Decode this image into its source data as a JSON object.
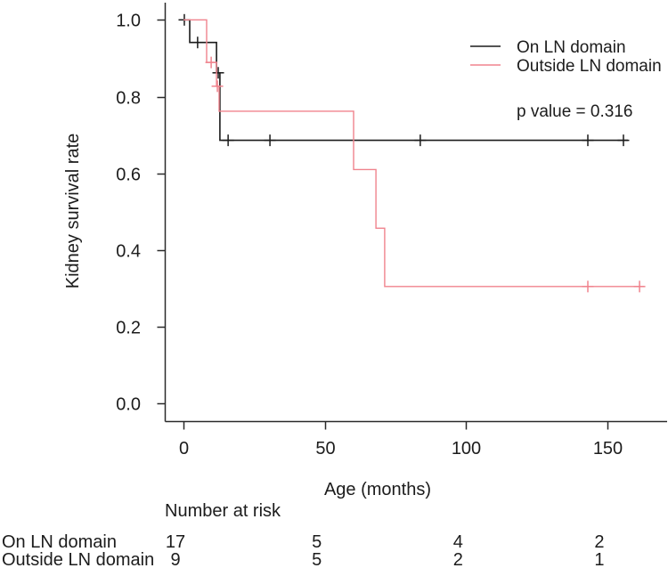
{
  "chart_data": {
    "type": "line",
    "subtype": "kaplan-meier-step",
    "xlabel": "Age (months)",
    "ylabel": "Kidney survival rate",
    "xlim": [
      0,
      170
    ],
    "ylim": [
      0.0,
      1.0
    ],
    "grid": false,
    "legend_position": "top-right",
    "p_value_label": "p value = 0.316",
    "xticks": [
      {
        "t": 0,
        "label": "0"
      },
      {
        "t": 50,
        "label": "50"
      },
      {
        "t": 100,
        "label": "100"
      },
      {
        "t": 150,
        "label": "150"
      }
    ],
    "yticks": [
      {
        "s": 0.0,
        "label": "0.0"
      },
      {
        "s": 0.2,
        "label": "0.2"
      },
      {
        "s": 0.4,
        "label": "0.4"
      },
      {
        "s": 0.6,
        "label": "0.6"
      },
      {
        "s": 0.8,
        "label": "0.8"
      },
      {
        "s": 1.0,
        "label": "1.0"
      }
    ],
    "series": [
      {
        "name": "On LN domain",
        "color": "#1b1b1b",
        "steps": [
          [
            0,
            1.0
          ],
          [
            2.2,
            1.0
          ],
          [
            2.2,
            0.941
          ],
          [
            11.7,
            0.941
          ],
          [
            11.7,
            0.862
          ],
          [
            12.9,
            0.862
          ],
          [
            12.9,
            0.686
          ],
          [
            157.3,
            0.686
          ]
        ],
        "censors": [
          [
            0.3,
            1.0
          ],
          [
            5.0,
            0.941
          ],
          [
            12.3,
            0.862
          ],
          [
            15.8,
            0.686
          ],
          [
            30.6,
            0.686
          ],
          [
            83.8,
            0.686
          ],
          [
            143.1,
            0.686
          ],
          [
            155.7,
            0.686
          ]
        ]
      },
      {
        "name": "Outside LN domain",
        "color": "#f0838d",
        "steps": [
          [
            0,
            1.0
          ],
          [
            8.2,
            1.0
          ],
          [
            8.2,
            0.889
          ],
          [
            11.7,
            0.889
          ],
          [
            11.7,
            0.827
          ],
          [
            12.6,
            0.827
          ],
          [
            12.6,
            0.762
          ],
          [
            60.2,
            0.762
          ],
          [
            60.2,
            0.61
          ],
          [
            68.1,
            0.61
          ],
          [
            68.1,
            0.457
          ],
          [
            71.2,
            0.457
          ],
          [
            71.2,
            0.305
          ],
          [
            163.0,
            0.305
          ]
        ],
        "censors": [
          [
            9.8,
            0.889
          ],
          [
            12.0,
            0.827
          ],
          [
            143.1,
            0.305
          ],
          [
            161.4,
            0.305
          ]
        ]
      }
    ],
    "number_at_risk": {
      "title": "Number at risk",
      "time_points": [
        0,
        50,
        100,
        150
      ],
      "rows": [
        {
          "label": "On LN domain",
          "values": [
            "17",
            "5",
            "4",
            "2"
          ]
        },
        {
          "label": "Outside LN domain",
          "values": [
            "9",
            "5",
            "2",
            "1"
          ]
        }
      ]
    }
  }
}
